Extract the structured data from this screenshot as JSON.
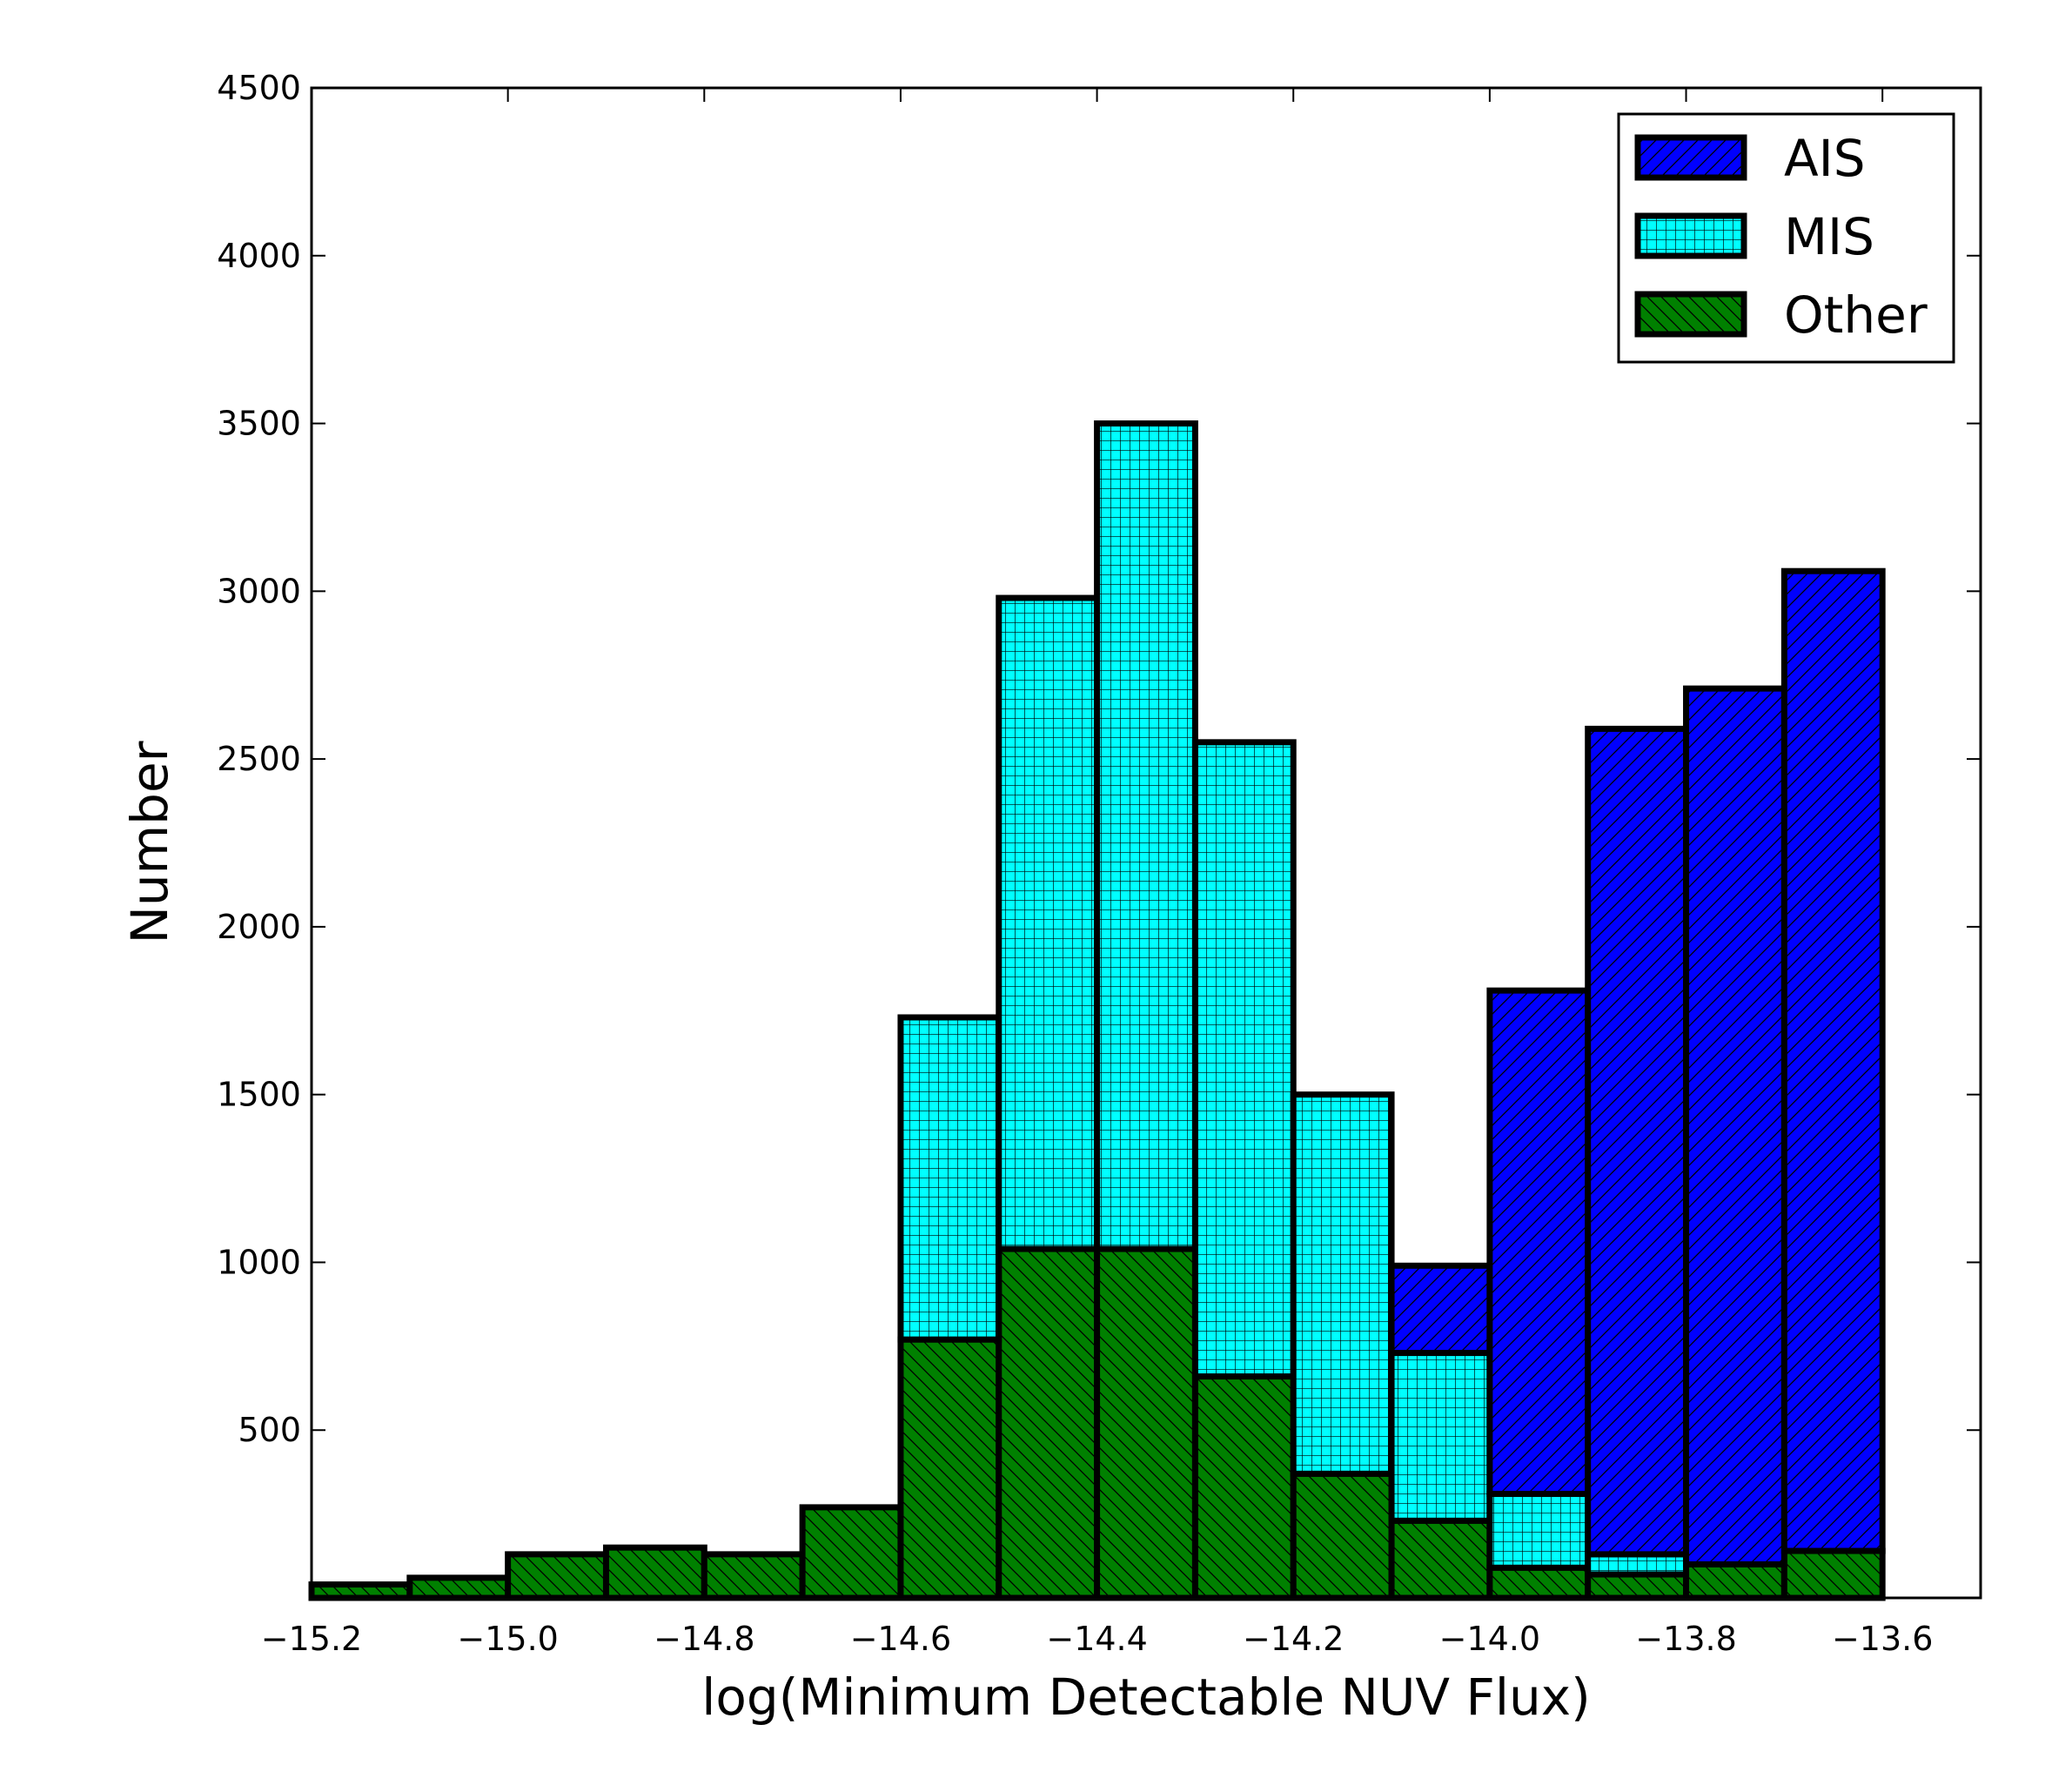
{
  "chart_data": {
    "type": "bar",
    "stacked": true,
    "title": "",
    "xlabel": "log(Minimum Detectable NUV Flux)",
    "ylabel": "Number",
    "xlim": [
      -15.2,
      -13.5
    ],
    "ylim": [
      0,
      4500
    ],
    "x_ticks": [
      -15.2,
      -15.0,
      -14.8,
      -14.6,
      -14.4,
      -14.2,
      -14.0,
      -13.8,
      -13.6
    ],
    "x_tick_labels": [
      "−15.2",
      "−15.0",
      "−14.8",
      "−14.6",
      "−14.4",
      "−14.2",
      "−14.0",
      "−13.8",
      "−13.6"
    ],
    "y_ticks": [
      500,
      1000,
      1500,
      2000,
      2500,
      3000,
      3500,
      4000,
      4500
    ],
    "y_tick_labels": [
      "500",
      "1000",
      "1500",
      "2000",
      "2500",
      "3000",
      "3500",
      "4000",
      "4500"
    ],
    "bin_edges": [
      -15.2,
      -15.1,
      -15.0,
      -14.9,
      -14.8,
      -14.7,
      -14.6,
      -14.5,
      -14.4,
      -14.3,
      -14.2,
      -14.1,
      -14.0,
      -13.9,
      -13.8,
      -13.7,
      -13.6
    ],
    "grid": false,
    "legend_position": "top-right",
    "series": [
      {
        "name": "Other",
        "color": "#008000",
        "hatch": "backslash",
        "values": [
          40,
          60,
          130,
          150,
          130,
          270,
          770,
          1040,
          1040,
          660,
          370,
          230,
          90,
          70,
          100,
          140
        ]
      },
      {
        "name": "MIS",
        "color": "#00ffff",
        "hatch": "grid",
        "values": [
          0,
          0,
          0,
          0,
          0,
          0,
          960,
          1940,
          2460,
          1890,
          1130,
          500,
          220,
          60,
          0,
          0
        ]
      },
      {
        "name": "AIS",
        "color": "#0000ff",
        "hatch": "slash",
        "values": [
          0,
          0,
          0,
          0,
          0,
          0,
          0,
          0,
          0,
          0,
          0,
          260,
          1500,
          2460,
          2610,
          2920
        ]
      }
    ],
    "legend_order": [
      "AIS",
      "MIS",
      "Other"
    ]
  }
}
